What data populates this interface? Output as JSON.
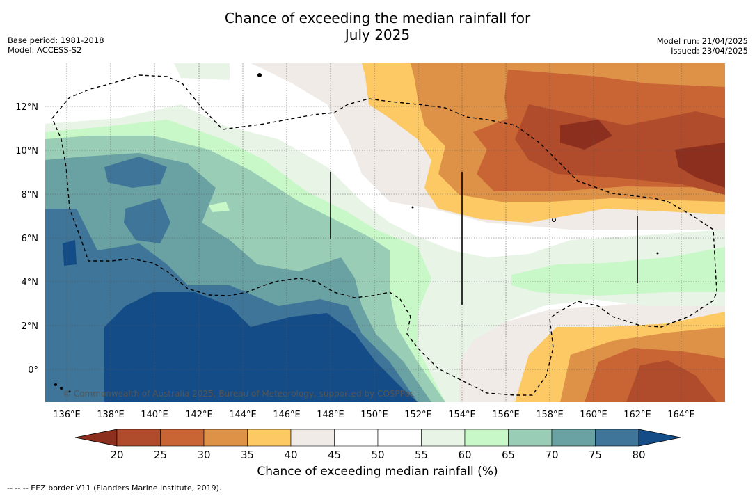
{
  "header": {
    "title_line1": "Chance of exceeding the median rainfall for",
    "title_line2": "July 2025",
    "base_period": "Base period: 1981-2018",
    "model": "Model: ACCESS-S2",
    "model_run": "Model run: 21/04/2025",
    "issued": "Issued: 23/04/2025"
  },
  "map": {
    "lon_ticks": [
      "136°E",
      "138°E",
      "140°E",
      "142°E",
      "144°E",
      "146°E",
      "148°E",
      "150°E",
      "152°E",
      "154°E",
      "156°E",
      "158°E",
      "160°E",
      "162°E",
      "164°E"
    ],
    "lat_ticks": [
      "12°N",
      "10°N",
      "8°N",
      "6°N",
      "4°N",
      "2°N",
      "0°"
    ],
    "lon_range": [
      134.9,
      166.0
    ],
    "lat_range": [
      -1.5,
      14.0
    ],
    "copyright": "© Commonwealth of Australia 2025, Bureau of Meteorology, supported by COSPPac"
  },
  "colorbar": {
    "tick_labels": [
      "20",
      "25",
      "30",
      "35",
      "40",
      "45",
      "50",
      "55",
      "60",
      "65",
      "70",
      "75",
      "80"
    ],
    "colors": [
      "#8c2f1e",
      "#b04c2b",
      "#c96534",
      "#de9248",
      "#fdc965",
      "#f0ebe6",
      "#ffffff",
      "#ffffff",
      "#e8f4e6",
      "#c8f7c8",
      "#9acdb6",
      "#6aa2a3",
      "#3e7598",
      "#144c88"
    ],
    "label": "Chance of exceeding median rainfall (%)"
  },
  "footnote": "--  --  -- EEZ border V11 (Flanders Marine Institute, 2019)."
}
